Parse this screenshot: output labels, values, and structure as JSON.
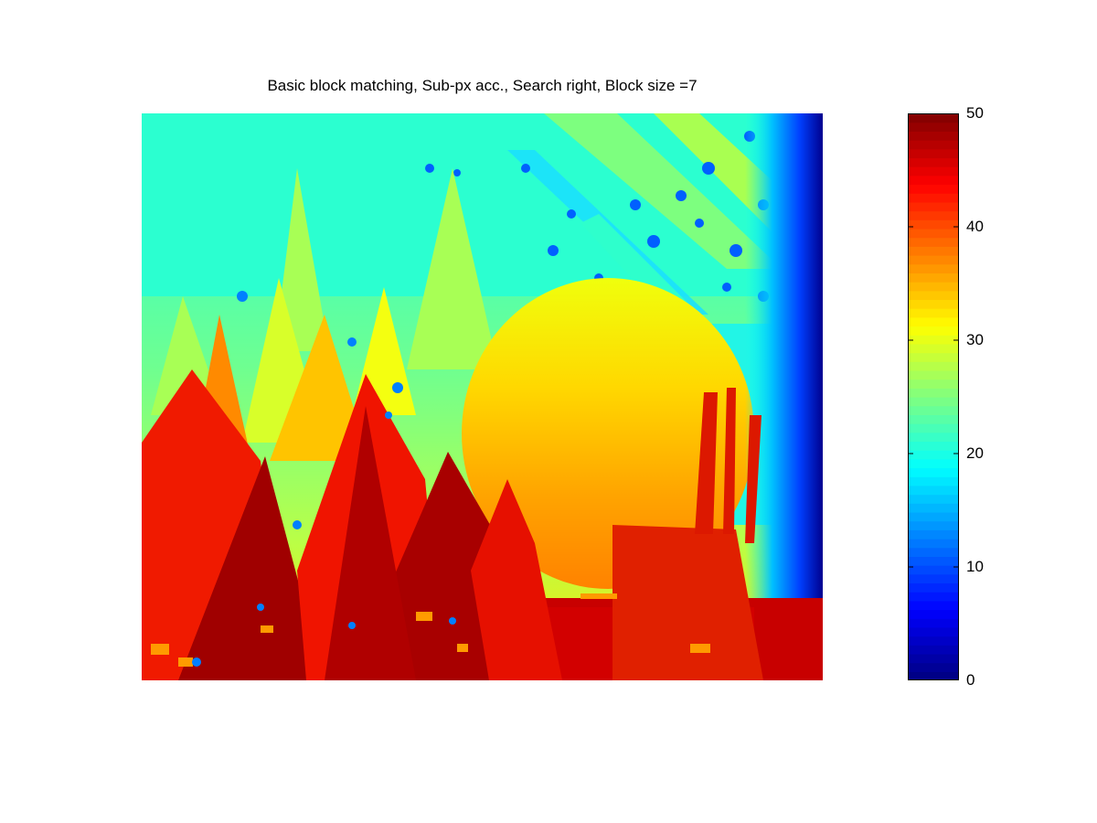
{
  "chart_data": {
    "type": "heatmap",
    "title": "Basic block matching, Sub-px acc., Search right, Block size =7",
    "xlabel": "",
    "ylabel": "",
    "colormap": "jet",
    "color_range": [
      0,
      50
    ],
    "colorbar": {
      "position": "right",
      "ticks": [
        0,
        10,
        20,
        30,
        40,
        50
      ],
      "tick_labels": [
        "0",
        "10",
        "20",
        "30",
        "40",
        "50"
      ]
    },
    "axes_visible": false,
    "grid": false,
    "description_regions": [
      {
        "region": "background",
        "value": 21
      },
      {
        "region": "back-row-cones",
        "value": 26
      },
      {
        "region": "middle-row-cones",
        "value": 31
      },
      {
        "region": "center-sphere",
        "value": 37
      },
      {
        "region": "front-cones",
        "value": 47
      },
      {
        "region": "right-edge",
        "value": 3
      }
    ]
  }
}
